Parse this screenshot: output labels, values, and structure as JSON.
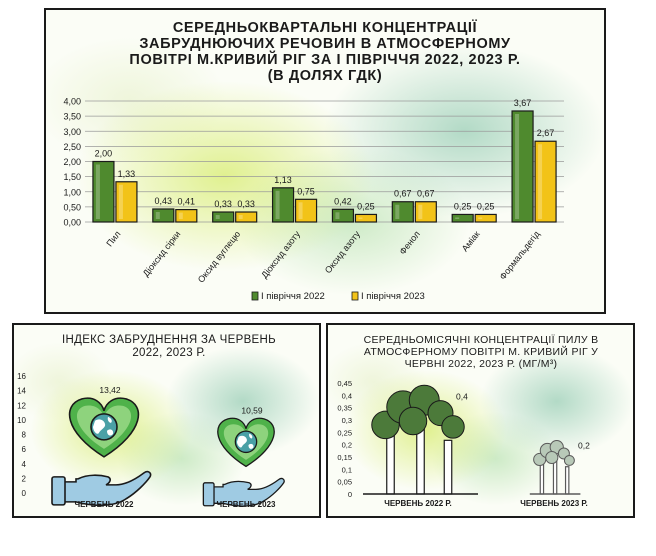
{
  "chart_data": [
    {
      "type": "bar",
      "title_lines": [
        "СЕРЕДНЬОКВАРТАЛЬНІ КОНЦЕНТРАЦІЇ",
        "ЗАБРУДНЮЮЧИХ РЕЧОВИН В АТМОСФЕРНОМУ",
        "ПОВІТРІ М.КРИВИЙ РІГ ЗА І ПІВРІЧЧЯ 2022, 2023 Р.",
        "(В ДОЛЯХ ГДК)"
      ],
      "categories": [
        "Пил",
        "Діоксид сірки",
        "Оксид вуглецю",
        "Діоксид азоту",
        "Оксид азоту",
        "Фенол",
        "Аміак",
        "Формальдегід"
      ],
      "series": [
        {
          "name": "І півріччя 2022",
          "color": "#4f8a2e",
          "values": [
            2.0,
            0.43,
            0.33,
            1.13,
            0.42,
            0.67,
            0.25,
            3.67
          ],
          "labels": [
            "2,00",
            "0,43",
            "0,33",
            "1,13",
            "0,42",
            "0,67",
            "0,25",
            "3,67"
          ]
        },
        {
          "name": "І півріччя 2023",
          "color": "#f2c318",
          "values": [
            1.33,
            0.41,
            0.33,
            0.75,
            0.25,
            0.67,
            0.25,
            2.67
          ],
          "labels": [
            "1,33",
            "0,41",
            "0,33",
            "0,75",
            "0,25",
            "0,67",
            "0,25",
            "2,67"
          ]
        }
      ],
      "ylim": [
        0,
        4
      ],
      "yticks": [
        0,
        0.5,
        1,
        1.5,
        2,
        2.5,
        3,
        3.5,
        4
      ],
      "ytick_labels": [
        "0,00",
        "0,50",
        "1,00",
        "1,50",
        "2,00",
        "2,50",
        "3,00",
        "3,50",
        "4,00"
      ],
      "grid": true,
      "legend_position": "bottom"
    },
    {
      "type": "bar",
      "title_lines": [
        "ІНДЕКС ЗАБРУДНЕННЯ ЗА ЧЕРВЕНЬ",
        "2022, 2023 Р."
      ],
      "categories": [
        "ЧЕРВЕНЬ 2022",
        "ЧЕРВЕНЬ 2023"
      ],
      "values": [
        13.42,
        10.59
      ],
      "labels": [
        "13,42",
        "10,59"
      ],
      "ylim": [
        0,
        16
      ],
      "yticks": [
        0,
        2,
        4,
        6,
        8,
        10,
        12,
        14,
        16
      ],
      "ytick_labels": [
        "0",
        "2",
        "4",
        "6",
        "8",
        "10",
        "12",
        "14",
        "16"
      ],
      "mark_icon": "heart-globe-in-hand-icon",
      "colors": {
        "heart": "#4fb24a",
        "heart_light": "#8ed37d",
        "globe": "#4aa0a6",
        "hand": "#9fcbe3"
      }
    },
    {
      "type": "bar",
      "title_lines": [
        "СЕРЕДНЬОМІСЯЧНІ КОНЦЕНТРАЦІЇ ПИЛУ В",
        "АТМОСФЕРНОМУ ПОВІТРІ М. КРИВИЙ РІГ У",
        "ЧЕРВНІ 2022, 2023 Р. (МГ/М³)"
      ],
      "categories": [
        "ЧЕРВЕНЬ 2022 Р.",
        "ЧЕРВЕНЬ 2023 Р."
      ],
      "values": [
        0.4,
        0.2
      ],
      "labels": [
        "0,4",
        "0,2"
      ],
      "ylim": [
        0,
        0.45
      ],
      "yticks": [
        0,
        0.05,
        0.1,
        0.15,
        0.2,
        0.25,
        0.3,
        0.35,
        0.4,
        0.45
      ],
      "ytick_labels": [
        "0",
        "0,05",
        "0,1",
        "0,15",
        "0,2",
        "0,25",
        "0,3",
        "0,35",
        "0,4",
        "0,45"
      ],
      "mark_icon": "factory-smoke-icon",
      "colors": {
        "smoke_dark": "#4c7a3a",
        "smoke_light": "#b8c9b8"
      }
    }
  ]
}
